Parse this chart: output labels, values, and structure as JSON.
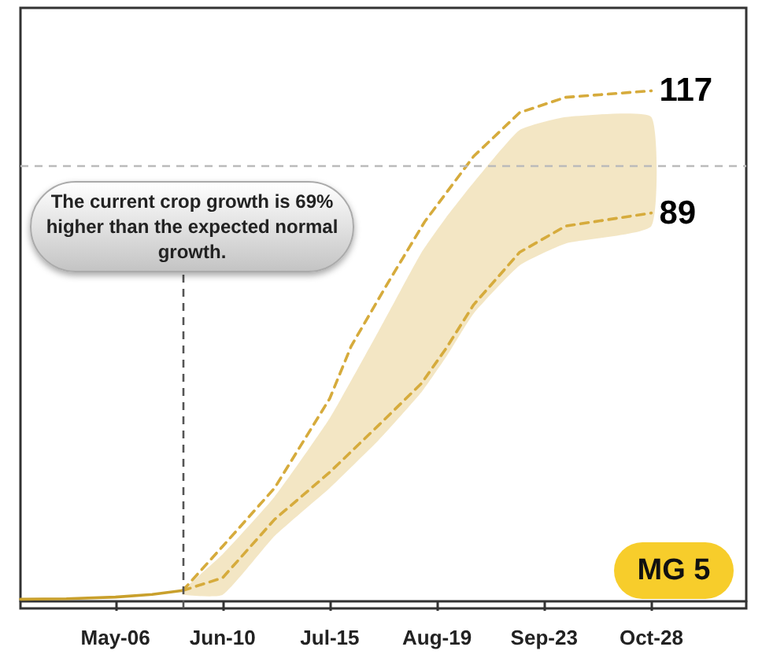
{
  "chart_data": {
    "type": "line",
    "xlim": [
      "--04-05",
      "--11-28"
    ],
    "ylim": [
      -1.6,
      136
    ],
    "tick_labels": "x",
    "xticks": [
      {
        "value": "--05-06",
        "label": "May-06"
      },
      {
        "value": "--06-10",
        "label": "Jun-10"
      },
      {
        "value": "--07-15",
        "label": "Jul-15"
      },
      {
        "value": "--08-19",
        "label": "Aug-19"
      },
      {
        "value": "--09-23",
        "label": "Sep-23"
      },
      {
        "value": "--10-28",
        "label": "Oct-28"
      }
    ],
    "marker": "none",
    "series": [
      {
        "color": "#c9a02c",
        "line_style": "solid",
        "x": [
          "--04-05",
          "--04-20",
          "--05-06",
          "--05-18",
          "--05-28"
        ],
        "values": [
          0.5,
          0.6,
          1,
          1.6,
          2.5
        ]
      },
      {
        "color": "#d6ab3c",
        "line_style": "dashed",
        "x": [
          "--05-28",
          "--06-10",
          "--06-27",
          "--07-15",
          "--07-22",
          "--08-03",
          "--08-15",
          "--08-31",
          "--09-15",
          "--09-30",
          "--10-28"
        ],
        "values": [
          2.5,
          12.6,
          26,
          46.5,
          58.5,
          73,
          87,
          102,
          112,
          115.5,
          117
        ],
        "value_labels": [
          null,
          null,
          null,
          null,
          null,
          null,
          null,
          null,
          null,
          null,
          "117"
        ]
      },
      {
        "color": "#d6ab3c",
        "line_style": "dashed",
        "x": [
          "--05-28",
          "--06-10",
          "--06-27",
          "--07-15",
          "--07-31",
          "--08-14",
          "--08-22",
          "--08-31",
          "--09-15",
          "--09-30",
          "--10-28"
        ],
        "values": [
          2.5,
          5.4,
          18.8,
          29.6,
          40.4,
          50,
          58,
          68,
          80,
          86,
          89
        ],
        "value_labels": [
          null,
          null,
          null,
          null,
          null,
          null,
          null,
          null,
          null,
          null,
          "89"
        ],
        "lower": [
          1.5,
          1.5,
          15,
          26,
          37,
          48,
          56,
          66,
          77,
          82,
          86
        ],
        "upper": [
          2.5,
          10.8,
          24,
          42,
          62,
          80,
          88,
          96,
          108,
          111,
          111
        ]
      }
    ],
    "ref_lines": [
      {
        "axis": "y",
        "value": 100,
        "color": "#bbbbbb",
        "line_style": "dashed"
      },
      {
        "axis": "x",
        "value": "--05-28",
        "color": "#555555",
        "line_style": "dashed"
      }
    ],
    "annotations": [
      {
        "text": "The current crop growth is 69% higher than the expected normal growth.",
        "x": "--05-28",
        "y": 86
      },
      "MG 5"
    ]
  }
}
